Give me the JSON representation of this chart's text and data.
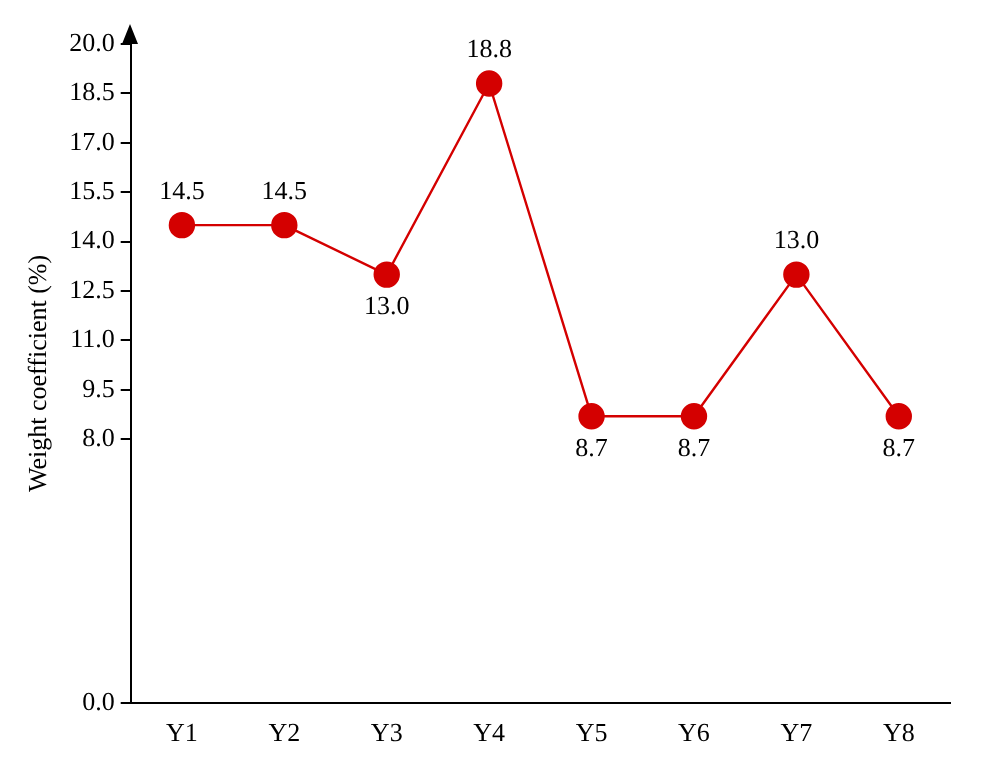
{
  "chart_data": {
    "type": "line",
    "ylabel": "Weight coefficient (%)",
    "categories": [
      "Y1",
      "Y2",
      "Y3",
      "Y4",
      "Y5",
      "Y6",
      "Y7",
      "Y8"
    ],
    "series": [
      {
        "color": "#d40000",
        "values": [
          14.5,
          14.5,
          13.0,
          18.8,
          8.7,
          8.7,
          13.0,
          8.7
        ],
        "value_labels": [
          "14.5",
          "14.5",
          "13.0",
          "18.8",
          "8.7",
          "8.7",
          "13.0",
          "8.7"
        ]
      }
    ],
    "ylim": [
      0,
      20
    ],
    "yticks": [
      "0.0",
      "8.0",
      "9.5",
      "11.0",
      "12.5",
      "14.0",
      "15.5",
      "17.0",
      "18.5",
      "20.0"
    ],
    "grid": false,
    "legend": false,
    "marker": "circle",
    "line_style": "solid"
  }
}
